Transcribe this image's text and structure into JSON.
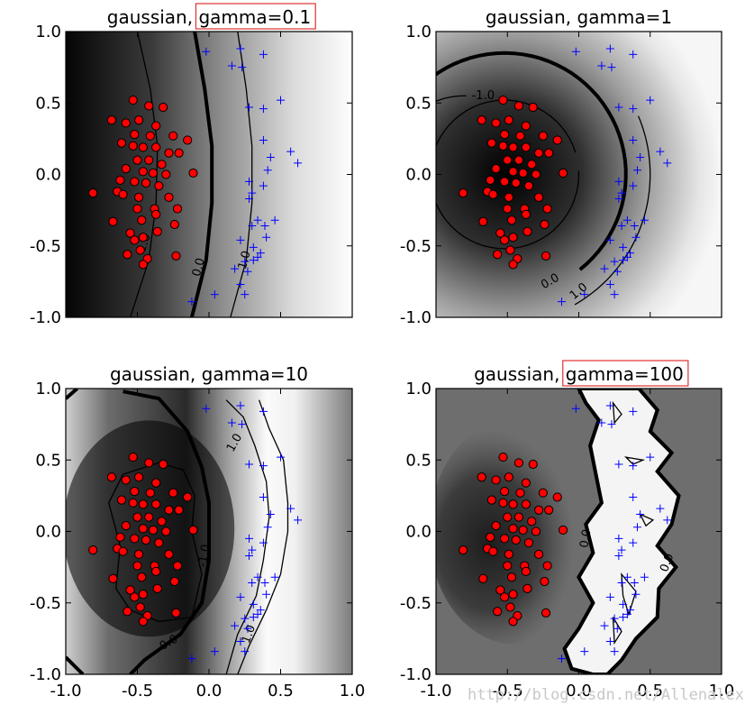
{
  "chart_data": [
    {
      "type": "scatter",
      "title": "gaussian, gamma=0.1",
      "title_prefix": "gaussian, ",
      "title_highlight": "gamma=0.1",
      "highlighted": true,
      "xlim": [
        -1.0,
        1.0
      ],
      "ylim": [
        -1.0,
        1.0
      ],
      "xticks": [
        "-1.0",
        "-0.5",
        "0.0",
        "0.5",
        "1.0"
      ],
      "yticks": [
        "1.0",
        "0.5",
        "0.0",
        "-0.5",
        "-1.0"
      ],
      "show_xticks": false,
      "contour_labels": [
        {
          "text": "1.0",
          "x": -0.45,
          "y": -0.48,
          "rot": -70
        },
        {
          "text": "0.0",
          "x": -0.07,
          "y": -0.65,
          "rot": -75
        },
        {
          "text": "1.0",
          "x": 0.25,
          "y": -0.6,
          "rot": -75
        }
      ]
    },
    {
      "type": "scatter",
      "title": "gaussian, gamma=1",
      "title_prefix": "gaussian, ",
      "title_highlight": "gamma=1",
      "highlighted": false,
      "xlim": [
        -1.0,
        1.0
      ],
      "ylim": [
        -1.0,
        1.0
      ],
      "xticks": [
        "-1.0",
        "-0.5",
        "0.0",
        "0.5",
        "1.0"
      ],
      "yticks": [
        "1.0",
        "0.5",
        "0.0",
        "-0.5",
        "-1.0"
      ],
      "show_xticks": false,
      "contour_labels": [
        {
          "text": "-1.0",
          "x": -0.67,
          "y": 0.55,
          "rot": 0
        },
        {
          "text": "0.0",
          "x": -0.2,
          "y": -0.75,
          "rot": -30
        },
        {
          "text": "1.0",
          "x": 0.0,
          "y": -0.82,
          "rot": -40
        }
      ]
    },
    {
      "type": "scatter",
      "title": "gaussian, gamma=10",
      "title_prefix": "gaussian, ",
      "title_highlight": "gamma=10",
      "highlighted": false,
      "xlim": [
        -1.0,
        1.0
      ],
      "ylim": [
        -1.0,
        1.0
      ],
      "xticks": [
        "-1.0",
        "-0.5",
        "0.0",
        "0.5",
        "1.0"
      ],
      "yticks": [
        "1.0",
        "0.5",
        "0.0",
        "-0.5",
        "-1.0"
      ],
      "show_xticks": true,
      "contour_labels": [
        {
          "text": "1.0",
          "x": 0.18,
          "y": 0.62,
          "rot": -60
        },
        {
          "text": "-1.0",
          "x": -0.03,
          "y": -0.17,
          "rot": -80
        },
        {
          "text": "0.0",
          "x": -0.28,
          "y": -0.78,
          "rot": -30
        },
        {
          "text": "1.0",
          "x": 0.28,
          "y": -0.72,
          "rot": -70
        }
      ]
    },
    {
      "type": "scatter",
      "title": "gaussian, gamma=100",
      "title_prefix": "gaussian, ",
      "title_highlight": "gamma=100",
      "highlighted": true,
      "xlim": [
        -1.0,
        1.0
      ],
      "ylim": [
        -1.0,
        1.0
      ],
      "xticks": [
        "-1.0",
        "-0.5",
        "0.0",
        "0.5",
        "1.0"
      ],
      "yticks": [
        "1.0",
        "0.5",
        "0.0",
        "-0.5",
        "-1.0"
      ],
      "show_xticks": true,
      "contour_labels": [
        {
          "text": "0.0",
          "x": 0.05,
          "y": -0.05,
          "rot": -80
        },
        {
          "text": "0.0",
          "x": 0.62,
          "y": -0.22,
          "rot": -70
        }
      ]
    }
  ],
  "series": {
    "red_circles": [
      [
        -0.53,
        0.52
      ],
      [
        -0.42,
        0.48
      ],
      [
        -0.32,
        0.47
      ],
      [
        -0.68,
        0.38
      ],
      [
        -0.58,
        0.36
      ],
      [
        -0.49,
        0.38
      ],
      [
        -0.37,
        0.34
      ],
      [
        -0.52,
        0.28
      ],
      [
        -0.41,
        0.27
      ],
      [
        -0.25,
        0.27
      ],
      [
        -0.15,
        0.24
      ],
      [
        -0.61,
        0.22
      ],
      [
        -0.53,
        0.2
      ],
      [
        -0.46,
        0.19
      ],
      [
        -0.37,
        0.19
      ],
      [
        -0.28,
        0.15
      ],
      [
        -0.21,
        0.15
      ],
      [
        -0.5,
        0.1
      ],
      [
        -0.42,
        0.1
      ],
      [
        -0.33,
        0.07
      ],
      [
        -0.58,
        0.04
      ],
      [
        -0.46,
        0.02
      ],
      [
        -0.39,
        0.01
      ],
      [
        -0.3,
        0.0
      ],
      [
        -0.11,
        0.01
      ],
      [
        -0.62,
        -0.04
      ],
      [
        -0.52,
        -0.05
      ],
      [
        -0.44,
        -0.06
      ],
      [
        -0.35,
        -0.08
      ],
      [
        -0.64,
        -0.12
      ],
      [
        -0.81,
        -0.13
      ],
      [
        -0.6,
        -0.14
      ],
      [
        -0.49,
        -0.16
      ],
      [
        -0.28,
        -0.16
      ],
      [
        -0.5,
        -0.24
      ],
      [
        -0.38,
        -0.24
      ],
      [
        -0.22,
        -0.24
      ],
      [
        -0.67,
        -0.33
      ],
      [
        -0.47,
        -0.32
      ],
      [
        -0.37,
        -0.28
      ],
      [
        -0.24,
        -0.35
      ],
      [
        -0.46,
        -0.44
      ],
      [
        -0.55,
        -0.41
      ],
      [
        -0.52,
        -0.46
      ],
      [
        -0.36,
        -0.4
      ],
      [
        -0.57,
        -0.56
      ],
      [
        -0.48,
        -0.53
      ],
      [
        -0.43,
        -0.59
      ],
      [
        -0.23,
        -0.57
      ],
      [
        -0.46,
        -0.63
      ]
    ],
    "blue_plus": [
      [
        -0.02,
        0.86
      ],
      [
        0.22,
        0.88
      ],
      [
        0.16,
        0.76
      ],
      [
        0.23,
        0.75
      ],
      [
        0.38,
        0.84
      ],
      [
        0.5,
        0.52
      ],
      [
        0.28,
        0.47
      ],
      [
        0.38,
        0.46
      ],
      [
        0.38,
        0.24
      ],
      [
        0.57,
        0.16
      ],
      [
        0.43,
        0.12
      ],
      [
        0.62,
        0.08
      ],
      [
        0.41,
        0.03
      ],
      [
        0.28,
        -0.05
      ],
      [
        0.38,
        -0.08
      ],
      [
        0.3,
        -0.13
      ],
      [
        0.28,
        -0.17
      ],
      [
        0.34,
        -0.32
      ],
      [
        0.46,
        -0.32
      ],
      [
        0.3,
        -0.36
      ],
      [
        0.39,
        -0.36
      ],
      [
        0.22,
        -0.46
      ],
      [
        0.4,
        -0.44
      ],
      [
        0.31,
        -0.51
      ],
      [
        0.36,
        -0.55
      ],
      [
        0.34,
        -0.58
      ],
      [
        0.31,
        -0.6
      ],
      [
        0.25,
        -0.61
      ],
      [
        0.18,
        -0.66
      ],
      [
        0.27,
        -0.68
      ],
      [
        0.25,
        -0.84
      ],
      [
        0.04,
        -0.84
      ],
      [
        -0.12,
        -0.89
      ],
      [
        0.22,
        -0.77
      ]
    ]
  },
  "watermark": "http://blog.csdn.net/Allenalex",
  "colors": {
    "red_marker": "#ff0000",
    "blue_marker": "#0000ff",
    "highlight_box": "#e03030"
  }
}
